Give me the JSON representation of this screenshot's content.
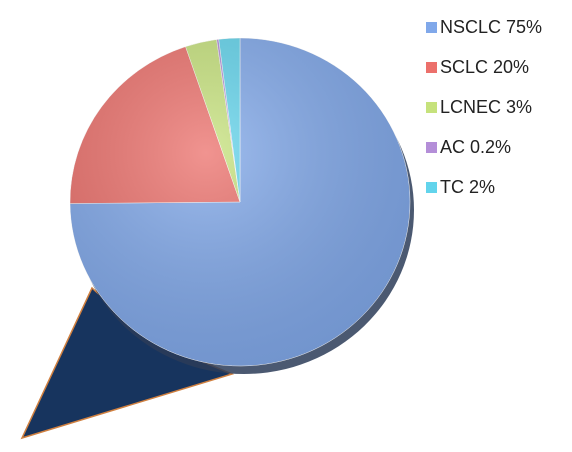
{
  "chart_data": {
    "type": "pie",
    "categories": [
      "NSCLC 75%",
      "SCLC 20%",
      "LCNEC 3%",
      "AC 0.2%",
      "TC 2%"
    ],
    "values": [
      75,
      20,
      3,
      0.2,
      2
    ],
    "colors": [
      "#80a8ea",
      "#ec706b",
      "#c6e27c",
      "#b48ed8",
      "#62d4ec"
    ]
  }
}
